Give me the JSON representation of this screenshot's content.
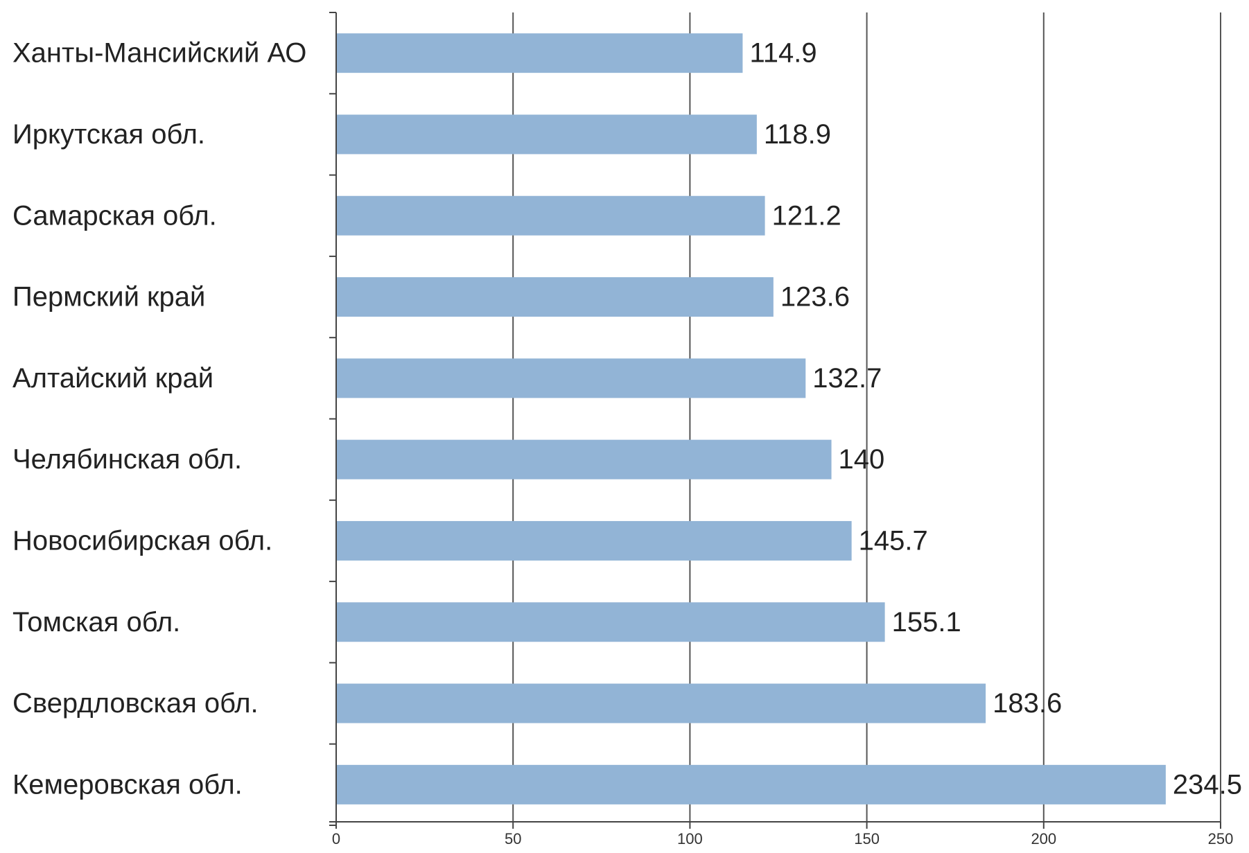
{
  "chart_data": {
    "type": "bar",
    "orientation": "horizontal",
    "categories": [
      "Ханты-Мансийский АО",
      "Иркутская обл.",
      "Самарская обл.",
      "Пермский край",
      "Алтайский край",
      "Челябинская обл.",
      "Новосибирская обл.",
      "Томская обл.",
      "Свердловская обл.",
      "Кемеровская обл."
    ],
    "values": [
      114.9,
      118.9,
      121.2,
      123.6,
      132.7,
      140,
      145.7,
      155.1,
      183.6,
      234.5
    ],
    "value_labels": [
      "114.9",
      "118.9",
      "121.2",
      "123.6",
      "132.7",
      "140",
      "145.7",
      "155.1",
      "183.6",
      "234.5"
    ],
    "xlim": [
      0,
      250
    ],
    "xticks": [
      0,
      50,
      100,
      150,
      200,
      250
    ],
    "xtick_labels": [
      "0",
      "50",
      "100",
      "150",
      "200",
      "250"
    ],
    "grid": true,
    "legend": "none",
    "colors": {
      "bar": "#92b4d6",
      "gridline": "#555555",
      "axis": "#444444",
      "text": "#222222"
    }
  }
}
